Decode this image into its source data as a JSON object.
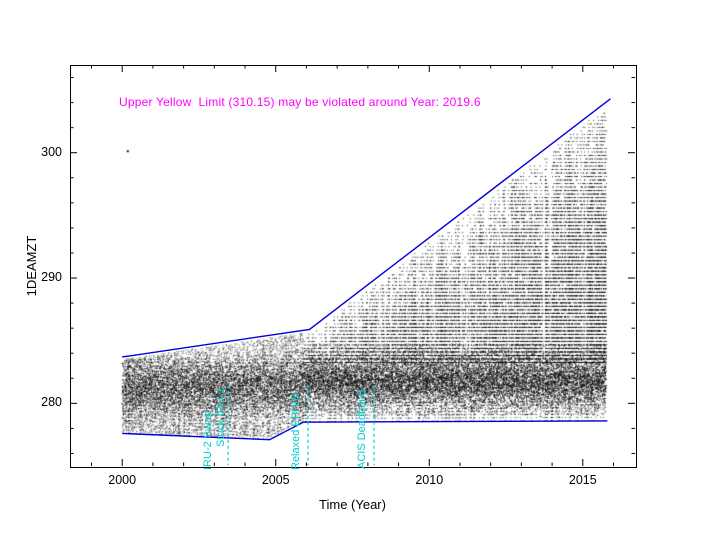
{
  "chart_data": {
    "type": "scatter",
    "xlabel": "Time (Year)",
    "ylabel": "1DEAMZT",
    "xlim": [
      1998.3,
      2016.7
    ],
    "ylim": [
      275.0,
      307.0
    ],
    "x_ticks": [
      2000,
      2005,
      2010,
      2015
    ],
    "x_tick_labels": [
      "2000",
      "2005",
      "2010",
      "2015"
    ],
    "x_minor_step": 1,
    "y_ticks": [
      280,
      290,
      300
    ],
    "y_tick_labels": [
      "280",
      "290",
      "300"
    ],
    "y_minor_step": 2,
    "grid": false,
    "warning": {
      "text": "Upper Yellow  Limit (310.15) may be violated around Year: 2019.6",
      "color": "#ff00ff",
      "limit_value": 310.15,
      "violation_year": 2019.6
    },
    "series": [
      {
        "name": "1DEAMZT telemetry points",
        "type": "scatter-dense",
        "color": "#000000"
      },
      {
        "name": "upper envelope",
        "type": "line",
        "color": "#0000dd",
        "points": [
          [
            2000.0,
            283.7
          ],
          [
            2006.1,
            285.9
          ],
          [
            2015.9,
            304.3
          ]
        ]
      },
      {
        "name": "lower envelope",
        "type": "line",
        "color": "#0000dd",
        "points": [
          [
            2000.0,
            277.6
          ],
          [
            2004.8,
            277.1
          ],
          [
            2005.9,
            278.5
          ],
          [
            2015.8,
            278.6
          ]
        ]
      }
    ],
    "scatter_profile": {
      "t_start": 2000.0,
      "t_end": 2015.75,
      "core_center_pre": 281.4,
      "core_center_post": 281.8,
      "core_sigma": 1.05,
      "band_bottom_offset": 0.2,
      "core_top_post": 284.8,
      "spike_start": 2005.9,
      "spike_base": 283.3,
      "spike_prob_start": 0.32,
      "spike_prob_end": 0.65,
      "down_spike_prob": 0.14,
      "down_spike_top": 280.3
    },
    "outliers": [
      [
        2000.15,
        300.2
      ]
    ],
    "events": [
      {
        "year": 2003.45,
        "color": "#00cdcd",
        "labels": [
          "IRU-2 Swap",
          "Stuck IRU-1"
        ]
      },
      {
        "year": 2006.05,
        "color": "#00cdcd",
        "labels": [
          "Relaxed EPHIN"
        ]
      },
      {
        "year": 2008.2,
        "color": "#00cdcd",
        "labels": [
          "ACIS Deadband"
        ]
      }
    ]
  },
  "colors": {
    "frame": "#000000",
    "background": "#ffffff",
    "envelope": "#0000dd",
    "event": "#00cdcd",
    "warning": "#ff00ff",
    "points": "#000000"
  }
}
